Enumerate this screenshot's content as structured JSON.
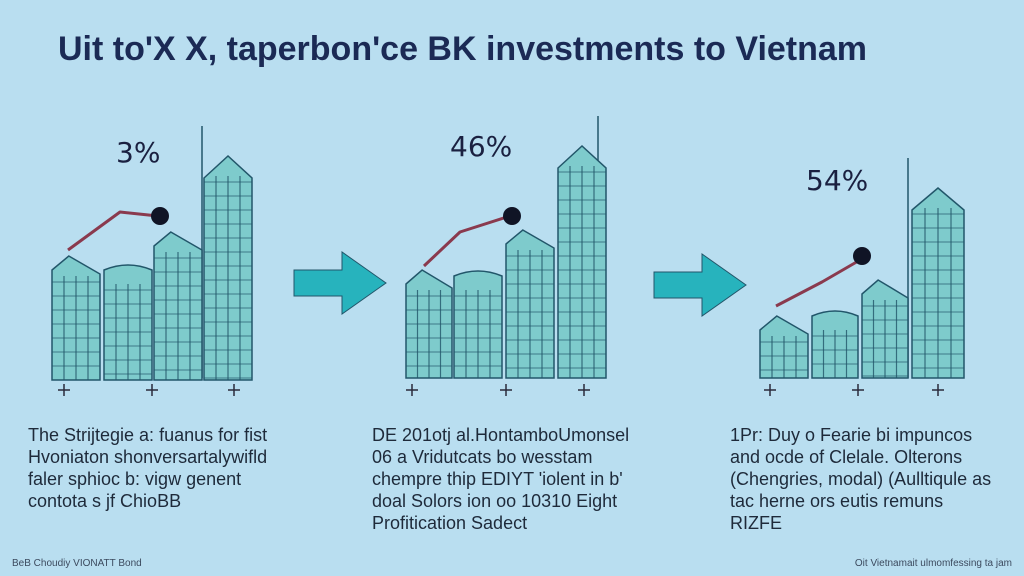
{
  "title": "Uit to'X X, taperbon'ce BK investments to Vietnam",
  "panels": [
    {
      "percent": "3%"
    },
    {
      "percent": "46%"
    },
    {
      "percent": "54%"
    }
  ],
  "captions": [
    [
      "The Strijtegie a: fuanus for fist",
      "Hvoniaton shonversartalywifld",
      "faler sphioc b: vigw genent",
      "contota s jf ChioBB"
    ],
    [
      "DE 201otj al.HontamboUmonsel",
      "06 a Vridutcats bo wesstam",
      "chempre thip EDIYT 'iolent in b'",
      "doal Solors ion oo 10310 Eight",
      "Profitication Sadect"
    ],
    [
      "1Pr: Duy o Fearie bi impuncos",
      "and ocde of Clelale. Olterons",
      "(Chengries, modal) (Aulltiqule as",
      "tac herne ors eutis remuns",
      "RIZFE"
    ]
  ],
  "footer": {
    "left": "BeB Choudiy VIONATT Bond",
    "right": "Oit Vietnamait ulmomfessing ta jam"
  },
  "colors": {
    "background": "#b9def0",
    "building_fill": "#7ecbcc",
    "building_stroke": "#22566a",
    "trend_line": "#8a3a4e",
    "arrow": "#27b3bd",
    "title": "#1b2a55"
  }
}
